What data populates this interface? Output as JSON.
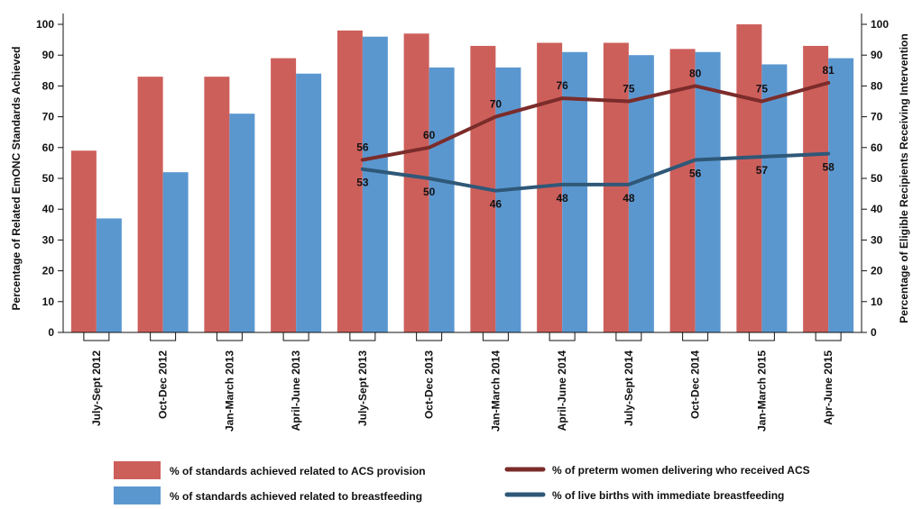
{
  "chart_data": {
    "type": "bar",
    "categories": [
      "July-Sept 2012",
      "Oct-Dec 2012",
      "Jan-March 2013",
      "April-June 2013",
      "July-Sept 2013",
      "Oct-Dec 2013",
      "Jan-March 2014",
      "April-June 2014",
      "July-Sept 2014",
      "Oct-Dec 2014",
      "Jan-March 2015",
      "Apr-June 2015"
    ],
    "ylabel": "Percentage of Related EmONC Standards Achieved",
    "y2label": "Percentage of Eligible Recipients Receiving Intervention",
    "ylim": [
      0,
      100
    ],
    "y2lim": [
      0,
      100
    ],
    "yticks": [
      0,
      10,
      20,
      30,
      40,
      50,
      60,
      70,
      80,
      90,
      100
    ],
    "bar_series": [
      {
        "name": "% of standards achieved related to ACS provision",
        "color": "#cd5f5b",
        "values": [
          59,
          83,
          83,
          89,
          98,
          97,
          93,
          94,
          94,
          92,
          100,
          93
        ]
      },
      {
        "name": "% of standards achieved related to breastfeeding",
        "color": "#5b97cf",
        "values": [
          37,
          52,
          71,
          84,
          96,
          86,
          86,
          91,
          90,
          91,
          87,
          89
        ]
      }
    ],
    "line_series": [
      {
        "name": "% of preterm women delivering who received ACS",
        "color": "#7b2c2a",
        "axis": "right",
        "values": [
          null,
          null,
          null,
          null,
          56,
          60,
          70,
          76,
          75,
          80,
          75,
          81
        ]
      },
      {
        "name": "% of live births with immediate breastfeeding",
        "color": "#2f5878",
        "axis": "right",
        "values": [
          null,
          null,
          null,
          null,
          53,
          50,
          46,
          48,
          48,
          56,
          57,
          58
        ]
      }
    ],
    "legend_position": "bottom",
    "grid": false
  }
}
